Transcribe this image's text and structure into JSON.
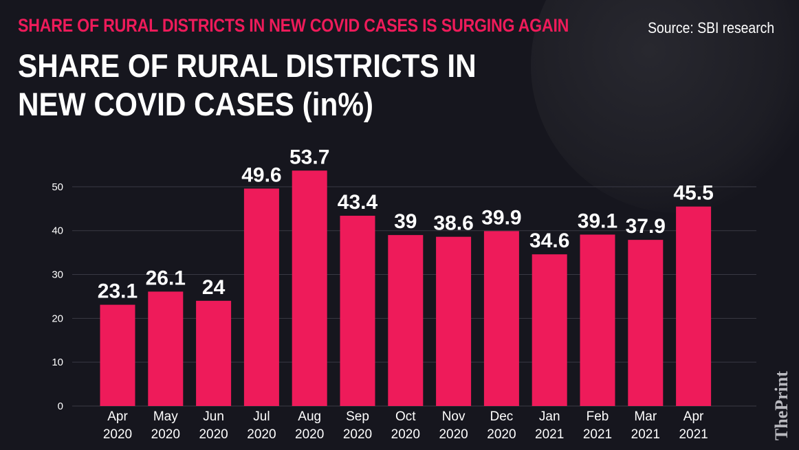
{
  "header": {
    "kicker": "SHARE OF RURAL DISTRICTS IN NEW COVID CASES IS SURGING AGAIN",
    "source": "Source: SBI research",
    "watermark": "ThePrint"
  },
  "colors": {
    "bar": "#ee1b5a",
    "background": "#16161e",
    "grid": "#3a3a44",
    "text": "#ffffff"
  },
  "chart_data": {
    "type": "bar",
    "title": "SHARE OF RURAL DISTRICTS IN NEW COVID CASES (in%)",
    "categories": [
      [
        "Apr",
        "2020"
      ],
      [
        "May",
        "2020"
      ],
      [
        "Jun",
        "2020"
      ],
      [
        "Jul",
        "2020"
      ],
      [
        "Aug",
        "2020"
      ],
      [
        "Sep",
        "2020"
      ],
      [
        "Oct",
        "2020"
      ],
      [
        "Nov",
        "2020"
      ],
      [
        "Dec",
        "2020"
      ],
      [
        "Jan",
        "2021"
      ],
      [
        "Feb",
        "2021"
      ],
      [
        "Mar",
        "2021"
      ],
      [
        "Apr",
        "2021"
      ]
    ],
    "values": [
      23.1,
      26.1,
      24,
      49.6,
      53.7,
      43.4,
      39,
      38.6,
      39.9,
      34.6,
      39.1,
      37.9,
      45.5
    ],
    "data_labels": [
      "23.1",
      "26.1",
      "24",
      "49.6",
      "53.7",
      "43.4",
      "39",
      "38.6",
      "39.9",
      "34.6",
      "39.1",
      "37.9",
      "45.5"
    ],
    "yticks": [
      0,
      10,
      20,
      30,
      40,
      50
    ],
    "ylim": [
      0,
      55
    ],
    "grid": true,
    "legend": false
  }
}
